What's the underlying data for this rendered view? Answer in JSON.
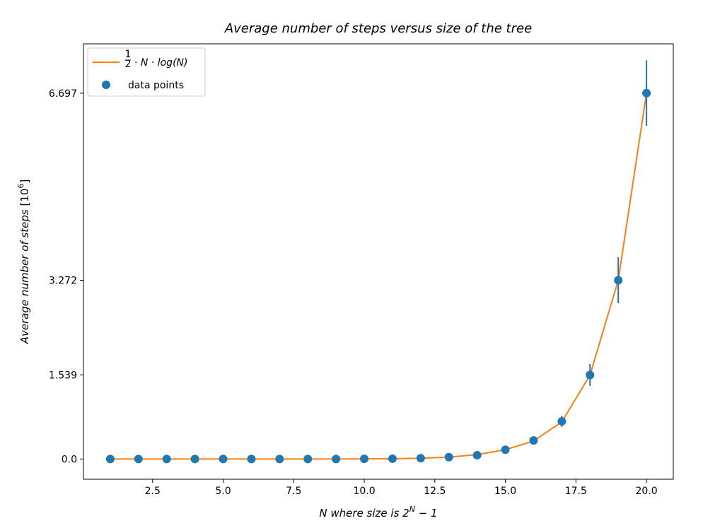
{
  "chart_data": {
    "type": "scatter",
    "title": "Average number of steps versus size of the tree",
    "xlabel": "N where size is 2^N − 1",
    "ylabel": "Average number of steps [10^6]",
    "xlim": [
      0.05,
      20.95
    ],
    "ylim": [
      -0.37,
      7.6
    ],
    "x_ticks": [
      2.5,
      5.0,
      7.5,
      10.0,
      12.5,
      15.0,
      17.5,
      20.0
    ],
    "x_tick_labels": [
      "2.5",
      "5.0",
      "7.5",
      "10.0",
      "12.5",
      "15.0",
      "17.5",
      "20.0"
    ],
    "y_ticks": [
      0.0,
      1.539,
      3.272,
      6.697
    ],
    "y_tick_labels": [
      "0.0",
      "1.539",
      "3.272",
      "6.697"
    ],
    "grid": false,
    "legend_position": "top-left",
    "colors": {
      "line": "#ff7f0e",
      "points": "#1f77b4"
    },
    "series": [
      {
        "name": "1/2 · N · log(N)",
        "kind": "line",
        "x": [
          1,
          2,
          3,
          4,
          5,
          6,
          7,
          8,
          9,
          10,
          11,
          12,
          13,
          14,
          15,
          16,
          17,
          18,
          19,
          20
        ],
        "y": [
          0.0,
          0.0,
          0.0,
          0.0,
          0.0,
          0.0,
          0.0,
          0.0,
          0.001,
          0.003,
          0.006,
          0.015,
          0.035,
          0.08,
          0.17,
          0.33,
          0.68,
          1.539,
          3.272,
          6.697
        ]
      },
      {
        "name": "data points",
        "kind": "scatter",
        "x": [
          1,
          2,
          3,
          4,
          5,
          6,
          7,
          8,
          9,
          10,
          11,
          12,
          13,
          14,
          15,
          16,
          17,
          18,
          19,
          20
        ],
        "y": [
          0.0,
          0.0,
          0.0,
          0.0,
          0.0,
          0.0,
          0.0,
          0.0,
          0.001,
          0.003,
          0.006,
          0.015,
          0.035,
          0.07,
          0.17,
          0.34,
          0.69,
          1.539,
          3.272,
          6.697
        ],
        "err": [
          0,
          0,
          0,
          0,
          0,
          0,
          0,
          0,
          0,
          0,
          0,
          0,
          0,
          0,
          0.02,
          0.04,
          0.1,
          0.2,
          0.42,
          0.6
        ]
      }
    ]
  }
}
